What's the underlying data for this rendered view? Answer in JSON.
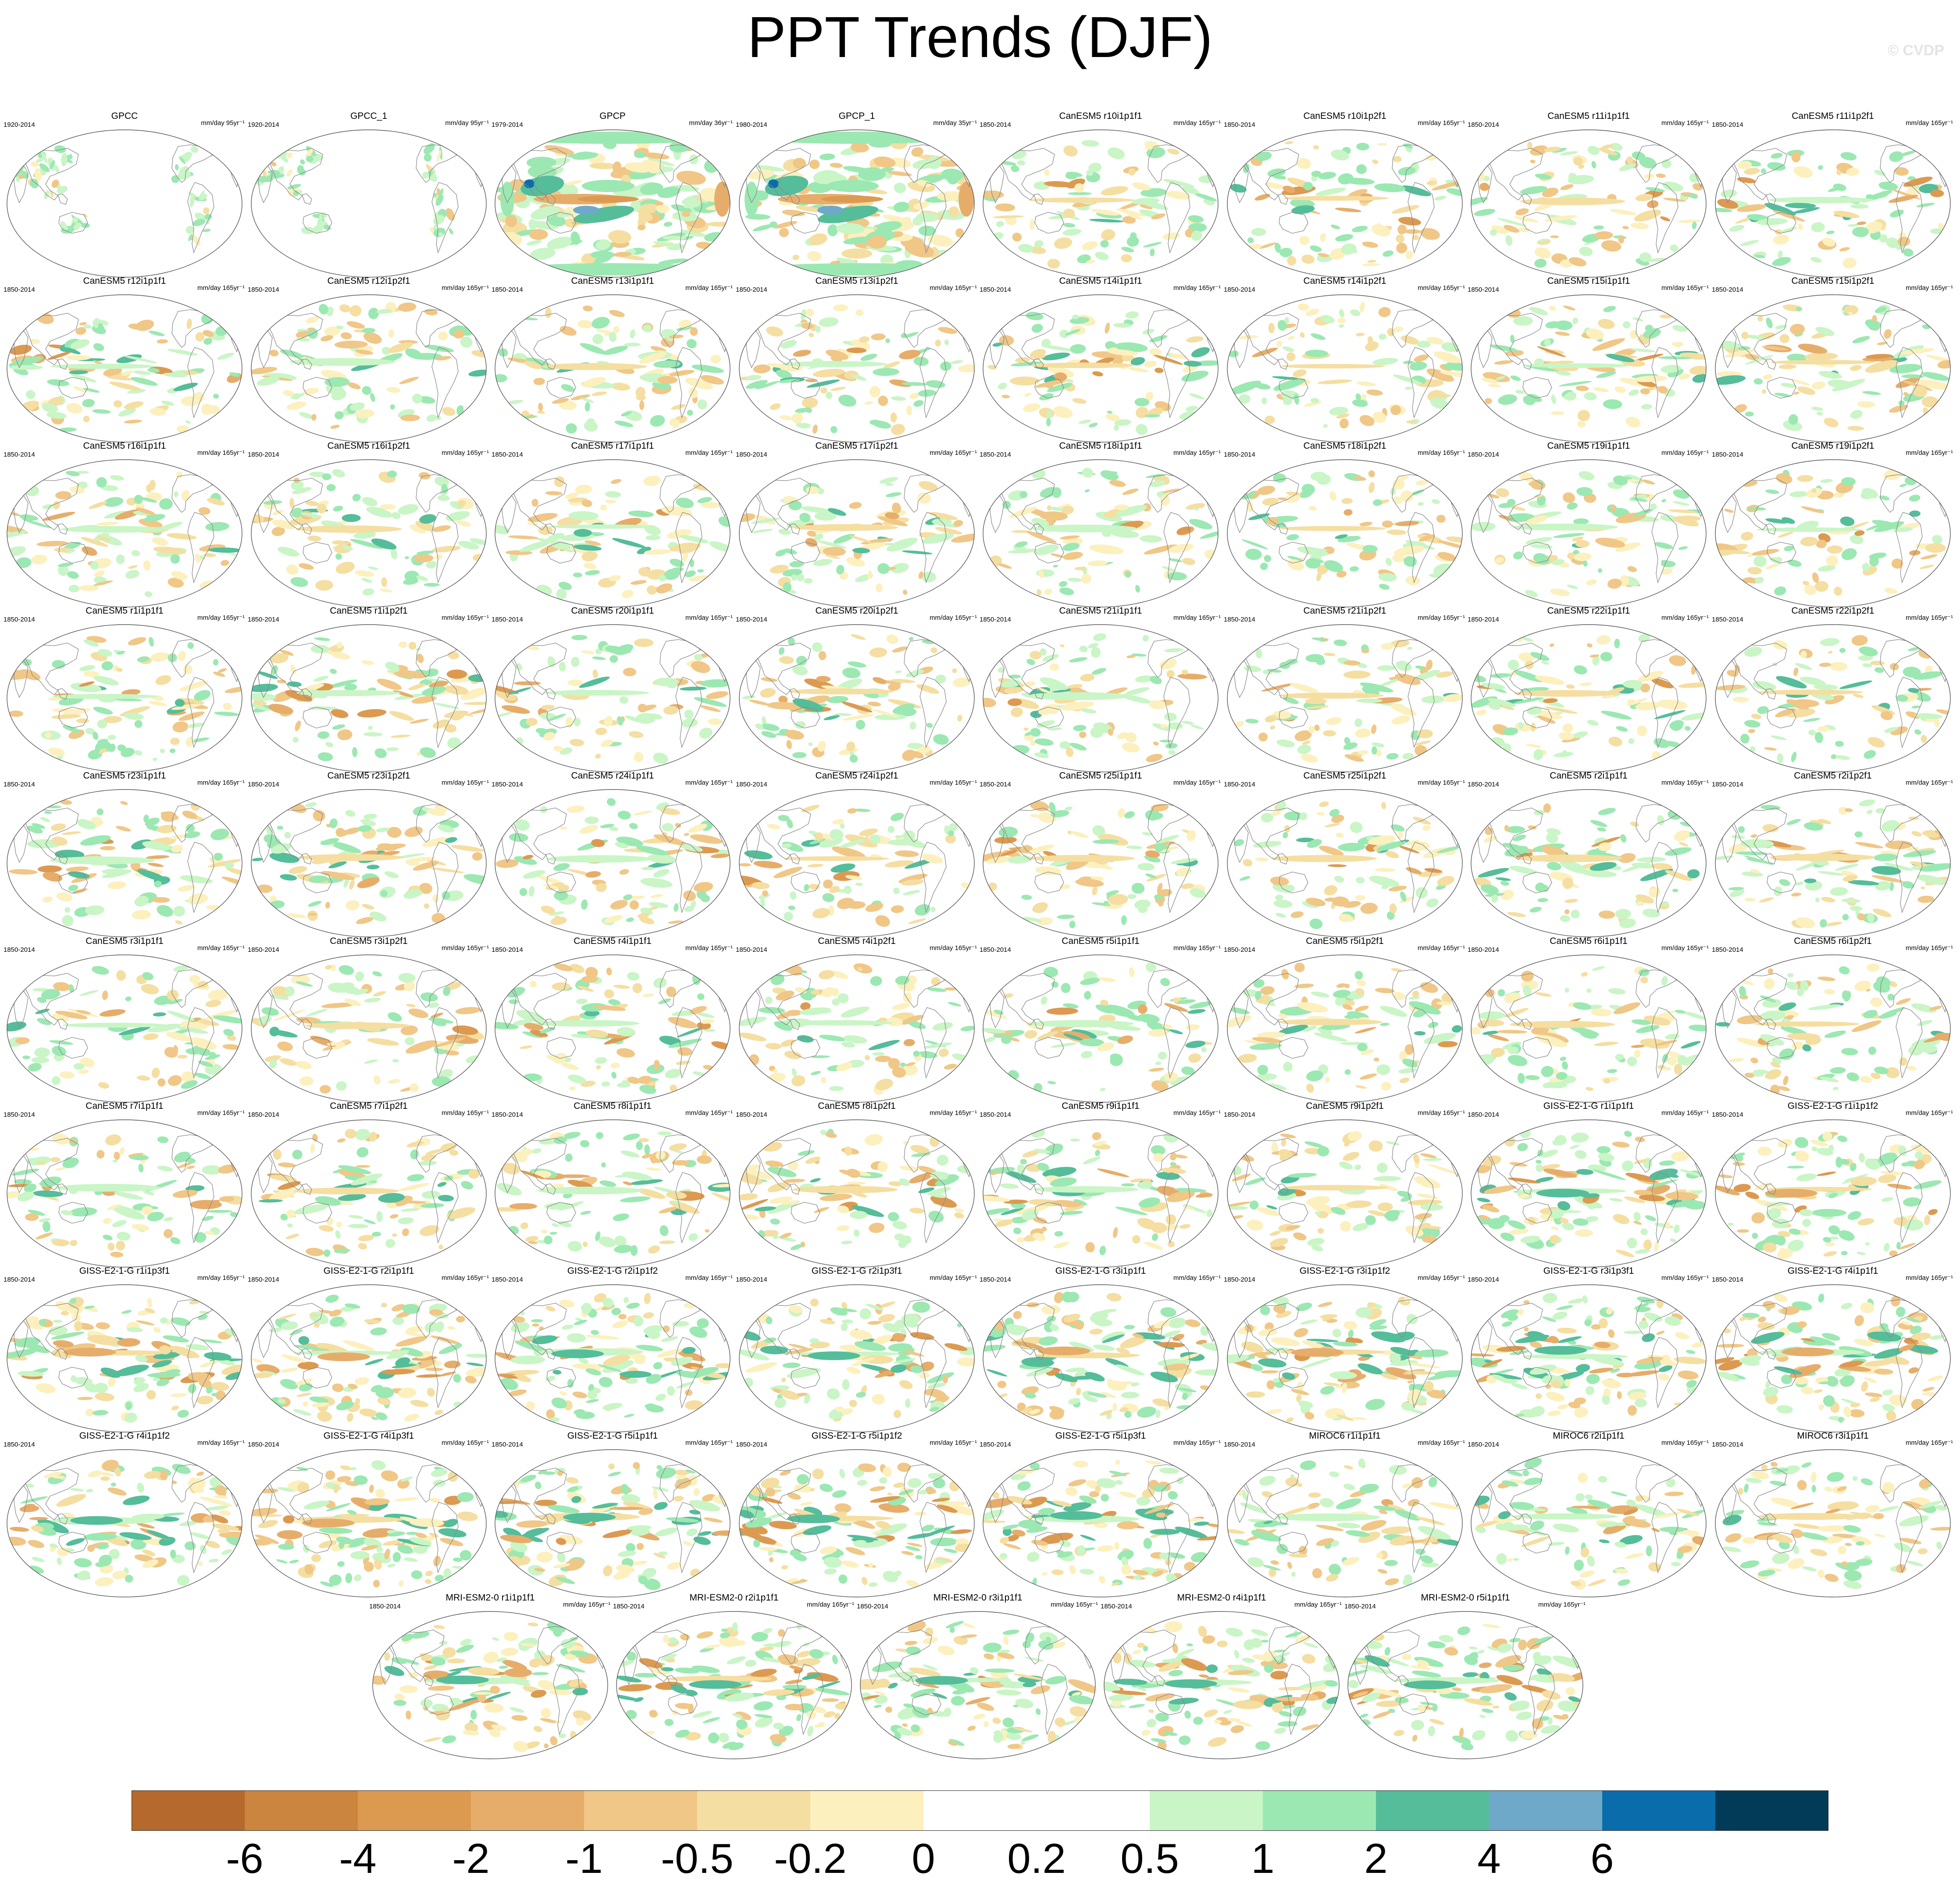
{
  "title": "PPT Trends (DJF)",
  "watermark": "© CVDP",
  "colorbar": {
    "colors": [
      "#b5692c",
      "#cc853e",
      "#dc9a51",
      "#e6ad6a",
      "#f0c787",
      "#f5dea1",
      "#fcf0be",
      "#ffffff",
      "#ffffff",
      "#caf5c6",
      "#9ce8b2",
      "#55bd9a",
      "#6fa9c9",
      "#0b6cac",
      "#023b57"
    ],
    "labels": [
      "-6",
      "-4",
      "-2",
      "-1",
      "-0.5",
      "-0.2",
      "0",
      "0.2",
      "0.5",
      "1",
      "2",
      "4",
      "6"
    ]
  },
  "panels": [
    {
      "name": "GPCC",
      "period": "1920-2014",
      "units": "mm/day 95yr⁻¹",
      "style": "obs_land"
    },
    {
      "name": "GPCC_1",
      "period": "1920-2014",
      "units": "mm/day 95yr⁻¹",
      "style": "obs_land"
    },
    {
      "name": "GPCP",
      "period": "1979-2014",
      "units": "mm/day 36yr⁻¹",
      "style": "obs_global"
    },
    {
      "name": "GPCP_1",
      "period": "1980-2014",
      "units": "mm/day 35yr⁻¹",
      "style": "obs_global"
    },
    {
      "name": "CanESM5 r10i1p1f1",
      "period": "1850-2014",
      "units": "mm/day 165yr⁻¹",
      "style": "model"
    },
    {
      "name": "CanESM5 r10i1p2f1",
      "period": "1850-2014",
      "units": "mm/day 165yr⁻¹",
      "style": "model"
    },
    {
      "name": "CanESM5 r11i1p1f1",
      "period": "1850-2014",
      "units": "mm/day 165yr⁻¹",
      "style": "model"
    },
    {
      "name": "CanESM5 r11i1p2f1",
      "period": "1850-2014",
      "units": "mm/day 165yr⁻¹",
      "style": "model"
    },
    {
      "name": "CanESM5 r12i1p1f1",
      "period": "1850-2014",
      "units": "mm/day 165yr⁻¹",
      "style": "model"
    },
    {
      "name": "CanESM5 r12i1p2f1",
      "period": "1850-2014",
      "units": "mm/day 165yr⁻¹",
      "style": "model"
    },
    {
      "name": "CanESM5 r13i1p1f1",
      "period": "1850-2014",
      "units": "mm/day 165yr⁻¹",
      "style": "model"
    },
    {
      "name": "CanESM5 r13i1p2f1",
      "period": "1850-2014",
      "units": "mm/day 165yr⁻¹",
      "style": "model"
    },
    {
      "name": "CanESM5 r14i1p1f1",
      "period": "1850-2014",
      "units": "mm/day 165yr⁻¹",
      "style": "model"
    },
    {
      "name": "CanESM5 r14i1p2f1",
      "period": "1850-2014",
      "units": "mm/day 165yr⁻¹",
      "style": "model"
    },
    {
      "name": "CanESM5 r15i1p1f1",
      "period": "1850-2014",
      "units": "mm/day 165yr⁻¹",
      "style": "model"
    },
    {
      "name": "CanESM5 r15i1p2f1",
      "period": "1850-2014",
      "units": "mm/day 165yr⁻¹",
      "style": "model"
    },
    {
      "name": "CanESM5 r16i1p1f1",
      "period": "1850-2014",
      "units": "mm/day 165yr⁻¹",
      "style": "model"
    },
    {
      "name": "CanESM5 r16i1p2f1",
      "period": "1850-2014",
      "units": "mm/day 165yr⁻¹",
      "style": "model"
    },
    {
      "name": "CanESM5 r17i1p1f1",
      "period": "1850-2014",
      "units": "mm/day 165yr⁻¹",
      "style": "model"
    },
    {
      "name": "CanESM5 r17i1p2f1",
      "period": "1850-2014",
      "units": "mm/day 165yr⁻¹",
      "style": "model"
    },
    {
      "name": "CanESM5 r18i1p1f1",
      "period": "1850-2014",
      "units": "mm/day 165yr⁻¹",
      "style": "model"
    },
    {
      "name": "CanESM5 r18i1p2f1",
      "period": "1850-2014",
      "units": "mm/day 165yr⁻¹",
      "style": "model"
    },
    {
      "name": "CanESM5 r19i1p1f1",
      "period": "1850-2014",
      "units": "mm/day 165yr⁻¹",
      "style": "model"
    },
    {
      "name": "CanESM5 r19i1p2f1",
      "period": "1850-2014",
      "units": "mm/day 165yr⁻¹",
      "style": "model"
    },
    {
      "name": "CanESM5 r1i1p1f1",
      "period": "1850-2014",
      "units": "mm/day 165yr⁻¹",
      "style": "model"
    },
    {
      "name": "CanESM5 r1i1p2f1",
      "period": "1850-2014",
      "units": "mm/day 165yr⁻¹",
      "style": "model"
    },
    {
      "name": "CanESM5 r20i1p1f1",
      "period": "1850-2014",
      "units": "mm/day 165yr⁻¹",
      "style": "model"
    },
    {
      "name": "CanESM5 r20i1p2f1",
      "period": "1850-2014",
      "units": "mm/day 165yr⁻¹",
      "style": "model"
    },
    {
      "name": "CanESM5 r21i1p1f1",
      "period": "1850-2014",
      "units": "mm/day 165yr⁻¹",
      "style": "model"
    },
    {
      "name": "CanESM5 r21i1p2f1",
      "period": "1850-2014",
      "units": "mm/day 165yr⁻¹",
      "style": "model"
    },
    {
      "name": "CanESM5 r22i1p1f1",
      "period": "1850-2014",
      "units": "mm/day 165yr⁻¹",
      "style": "model"
    },
    {
      "name": "CanESM5 r22i1p2f1",
      "period": "1850-2014",
      "units": "mm/day 165yr⁻¹",
      "style": "model"
    },
    {
      "name": "CanESM5 r23i1p1f1",
      "period": "1850-2014",
      "units": "mm/day 165yr⁻¹",
      "style": "model"
    },
    {
      "name": "CanESM5 r23i1p2f1",
      "period": "1850-2014",
      "units": "mm/day 165yr⁻¹",
      "style": "model"
    },
    {
      "name": "CanESM5 r24i1p1f1",
      "period": "1850-2014",
      "units": "mm/day 165yr⁻¹",
      "style": "model"
    },
    {
      "name": "CanESM5 r24i1p2f1",
      "period": "1850-2014",
      "units": "mm/day 165yr⁻¹",
      "style": "model"
    },
    {
      "name": "CanESM5 r25i1p1f1",
      "period": "1850-2014",
      "units": "mm/day 165yr⁻¹",
      "style": "model"
    },
    {
      "name": "CanESM5 r25i1p2f1",
      "period": "1850-2014",
      "units": "mm/day 165yr⁻¹",
      "style": "model"
    },
    {
      "name": "CanESM5 r2i1p1f1",
      "period": "1850-2014",
      "units": "mm/day 165yr⁻¹",
      "style": "model"
    },
    {
      "name": "CanESM5 r2i1p2f1",
      "period": "1850-2014",
      "units": "mm/day 165yr⁻¹",
      "style": "model"
    },
    {
      "name": "CanESM5 r3i1p1f1",
      "period": "1850-2014",
      "units": "mm/day 165yr⁻¹",
      "style": "model"
    },
    {
      "name": "CanESM5 r3i1p2f1",
      "period": "1850-2014",
      "units": "mm/day 165yr⁻¹",
      "style": "model"
    },
    {
      "name": "CanESM5 r4i1p1f1",
      "period": "1850-2014",
      "units": "mm/day 165yr⁻¹",
      "style": "model"
    },
    {
      "name": "CanESM5 r4i1p2f1",
      "period": "1850-2014",
      "units": "mm/day 165yr⁻¹",
      "style": "model"
    },
    {
      "name": "CanESM5 r5i1p1f1",
      "period": "1850-2014",
      "units": "mm/day 165yr⁻¹",
      "style": "model"
    },
    {
      "name": "CanESM5 r5i1p2f1",
      "period": "1850-2014",
      "units": "mm/day 165yr⁻¹",
      "style": "model"
    },
    {
      "name": "CanESM5 r6i1p1f1",
      "period": "1850-2014",
      "units": "mm/day 165yr⁻¹",
      "style": "model"
    },
    {
      "name": "CanESM5 r6i1p2f1",
      "period": "1850-2014",
      "units": "mm/day 165yr⁻¹",
      "style": "model"
    },
    {
      "name": "CanESM5 r7i1p1f1",
      "period": "1850-2014",
      "units": "mm/day 165yr⁻¹",
      "style": "model"
    },
    {
      "name": "CanESM5 r7i1p2f1",
      "period": "1850-2014",
      "units": "mm/day 165yr⁻¹",
      "style": "model"
    },
    {
      "name": "CanESM5 r8i1p1f1",
      "period": "1850-2014",
      "units": "mm/day 165yr⁻¹",
      "style": "model"
    },
    {
      "name": "CanESM5 r8i1p2f1",
      "period": "1850-2014",
      "units": "mm/day 165yr⁻¹",
      "style": "model"
    },
    {
      "name": "CanESM5 r9i1p1f1",
      "period": "1850-2014",
      "units": "mm/day 165yr⁻¹",
      "style": "model"
    },
    {
      "name": "CanESM5 r9i1p2f1",
      "period": "1850-2014",
      "units": "mm/day 165yr⁻¹",
      "style": "model"
    },
    {
      "name": "GISS-E2-1-G r1i1p1f1",
      "period": "1850-2014",
      "units": "mm/day 165yr⁻¹",
      "style": "giss"
    },
    {
      "name": "GISS-E2-1-G r1i1p1f2",
      "period": "1850-2014",
      "units": "mm/day 165yr⁻¹",
      "style": "giss"
    },
    {
      "name": "GISS-E2-1-G r1i1p3f1",
      "period": "1850-2014",
      "units": "mm/day 165yr⁻¹",
      "style": "giss"
    },
    {
      "name": "GISS-E2-1-G r2i1p1f1",
      "period": "1850-2014",
      "units": "mm/day 165yr⁻¹",
      "style": "giss"
    },
    {
      "name": "GISS-E2-1-G r2i1p1f2",
      "period": "1850-2014",
      "units": "mm/day 165yr⁻¹",
      "style": "giss"
    },
    {
      "name": "GISS-E2-1-G r2i1p3f1",
      "period": "1850-2014",
      "units": "mm/day 165yr⁻¹",
      "style": "giss"
    },
    {
      "name": "GISS-E2-1-G r3i1p1f1",
      "period": "1850-2014",
      "units": "mm/day 165yr⁻¹",
      "style": "giss"
    },
    {
      "name": "GISS-E2-1-G r3i1p1f2",
      "period": "1850-2014",
      "units": "mm/day 165yr⁻¹",
      "style": "giss"
    },
    {
      "name": "GISS-E2-1-G r3i1p3f1",
      "period": "1850-2014",
      "units": "mm/day 165yr⁻¹",
      "style": "giss"
    },
    {
      "name": "GISS-E2-1-G r4i1p1f1",
      "period": "1850-2014",
      "units": "mm/day 165yr⁻¹",
      "style": "giss"
    },
    {
      "name": "GISS-E2-1-G r4i1p1f2",
      "period": "1850-2014",
      "units": "mm/day 165yr⁻¹",
      "style": "giss"
    },
    {
      "name": "GISS-E2-1-G r4i1p3f1",
      "period": "1850-2014",
      "units": "mm/day 165yr⁻¹",
      "style": "giss"
    },
    {
      "name": "GISS-E2-1-G r5i1p1f1",
      "period": "1850-2014",
      "units": "mm/day 165yr⁻¹",
      "style": "giss"
    },
    {
      "name": "GISS-E2-1-G r5i1p1f2",
      "period": "1850-2014",
      "units": "mm/day 165yr⁻¹",
      "style": "giss"
    },
    {
      "name": "GISS-E2-1-G r5i1p3f1",
      "period": "1850-2014",
      "units": "mm/day 165yr⁻¹",
      "style": "giss"
    },
    {
      "name": "MIROC6 r1i1p1f1",
      "period": "1850-2014",
      "units": "mm/day 165yr⁻¹",
      "style": "model"
    },
    {
      "name": "MIROC6 r2i1p1f1",
      "period": "1850-2014",
      "units": "mm/day 165yr⁻¹",
      "style": "model"
    },
    {
      "name": "MIROC6 r3i1p1f1",
      "period": "1850-2014",
      "units": "mm/day 165yr⁻¹",
      "style": "model"
    },
    {
      "name": "MRI-ESM2-0 r1i1p1f1",
      "period": "1850-2014",
      "units": "mm/day 165yr⁻¹",
      "style": "giss"
    },
    {
      "name": "MRI-ESM2-0 r2i1p1f1",
      "period": "1850-2014",
      "units": "mm/day 165yr⁻¹",
      "style": "giss"
    },
    {
      "name": "MRI-ESM2-0 r3i1p1f1",
      "period": "1850-2014",
      "units": "mm/day 165yr⁻¹",
      "style": "giss"
    },
    {
      "name": "MRI-ESM2-0 r4i1p1f1",
      "period": "1850-2014",
      "units": "mm/day 165yr⁻¹",
      "style": "giss"
    },
    {
      "name": "MRI-ESM2-0 r5i1p1f1",
      "period": "1850-2014",
      "units": "mm/day 165yr⁻¹",
      "style": "giss"
    }
  ]
}
